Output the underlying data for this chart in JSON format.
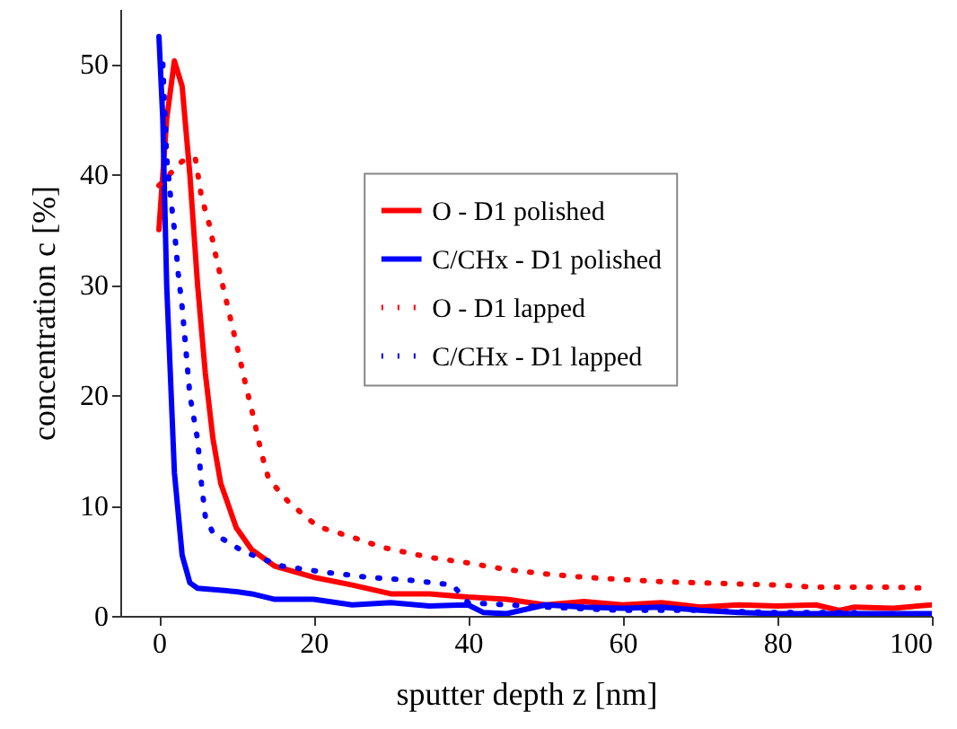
{
  "chart_data": {
    "type": "line",
    "xlabel": "sputter depth z [nm]",
    "ylabel": "concentration c [%]",
    "xlim": [
      -5,
      100
    ],
    "xticks": [
      0,
      20,
      40,
      60,
      80,
      100
    ],
    "ylim": [
      0,
      55
    ],
    "yticks": [
      0,
      10,
      20,
      30,
      40,
      50
    ],
    "grid": false,
    "legend": "top right",
    "marker": "none",
    "series": [
      {
        "name": "O - D1 polished",
        "color": "#ff0000",
        "line_style": "solid",
        "x": [
          0,
          1,
          2,
          3,
          4,
          5,
          6,
          7,
          8,
          10,
          12,
          15,
          20,
          25,
          30,
          35,
          40,
          45,
          50,
          55,
          60,
          65,
          70,
          75,
          80,
          85,
          88,
          90,
          95,
          100
        ],
        "values": [
          35,
          45,
          50.3,
          48,
          40,
          30,
          22,
          16,
          12,
          8,
          6,
          4.5,
          3.5,
          2.8,
          2,
          2,
          1.7,
          1.5,
          1,
          1.3,
          1,
          1.2,
          0.8,
          1,
          0.9,
          1,
          0.5,
          0.8,
          0.7,
          1
        ]
      },
      {
        "name": "C/CHx - D1 polished",
        "color": "#0000ff",
        "line_style": "solid",
        "x": [
          0,
          0.5,
          1,
          2,
          3,
          4,
          5,
          10,
          12,
          15,
          20,
          25,
          30,
          35,
          40,
          42,
          45,
          50,
          55,
          60,
          65,
          70,
          75,
          80,
          100
        ],
        "values": [
          52.5,
          45,
          30,
          13,
          5.5,
          3,
          2.5,
          2.2,
          2,
          1.5,
          1.5,
          1,
          1.2,
          0.9,
          1,
          0.3,
          0.2,
          1,
          0.8,
          0.7,
          0.8,
          0.5,
          0.3,
          0.2,
          0.2
        ]
      },
      {
        "name": "O - D1 lapped",
        "color": "#ff0000",
        "line_style": "dotted",
        "x": [
          0,
          3,
          4.7,
          5.5,
          6.5,
          7.4,
          8.4,
          9.4,
          10.4,
          11.3,
          12.3,
          13.2,
          14.2,
          16.8,
          20.5,
          24.7,
          29,
          35,
          40,
          45,
          50,
          55,
          60,
          65,
          70,
          75,
          80,
          85,
          90,
          95,
          100
        ],
        "values": [
          39,
          41.2,
          41.5,
          38,
          35.5,
          32.5,
          29.5,
          26.5,
          23.5,
          20.7,
          17.8,
          14.9,
          12.4,
          10.3,
          8.1,
          7.2,
          6.2,
          5.3,
          4.8,
          4.2,
          3.8,
          3.5,
          3.3,
          3.1,
          3,
          2.9,
          2.8,
          2.6,
          2.6,
          2.6,
          2.5
        ]
      },
      {
        "name": "C/CHx - D1 lapped",
        "color": "#0000ff",
        "line_style": "dotted",
        "x": [
          0.5,
          1,
          1.5,
          2,
          2.5,
          3,
          3.5,
          4,
          5,
          5.5,
          6,
          7,
          11,
          16,
          21,
          27,
          33,
          38,
          40,
          50,
          60,
          70,
          80,
          90
        ],
        "values": [
          50,
          41.5,
          38,
          35,
          31,
          28,
          24,
          20,
          16,
          12,
          9,
          7.5,
          5.8,
          4.5,
          4,
          3.5,
          3.2,
          2.8,
          1.2,
          0.8,
          0.5,
          0.5,
          0.3,
          0.3
        ]
      }
    ]
  }
}
